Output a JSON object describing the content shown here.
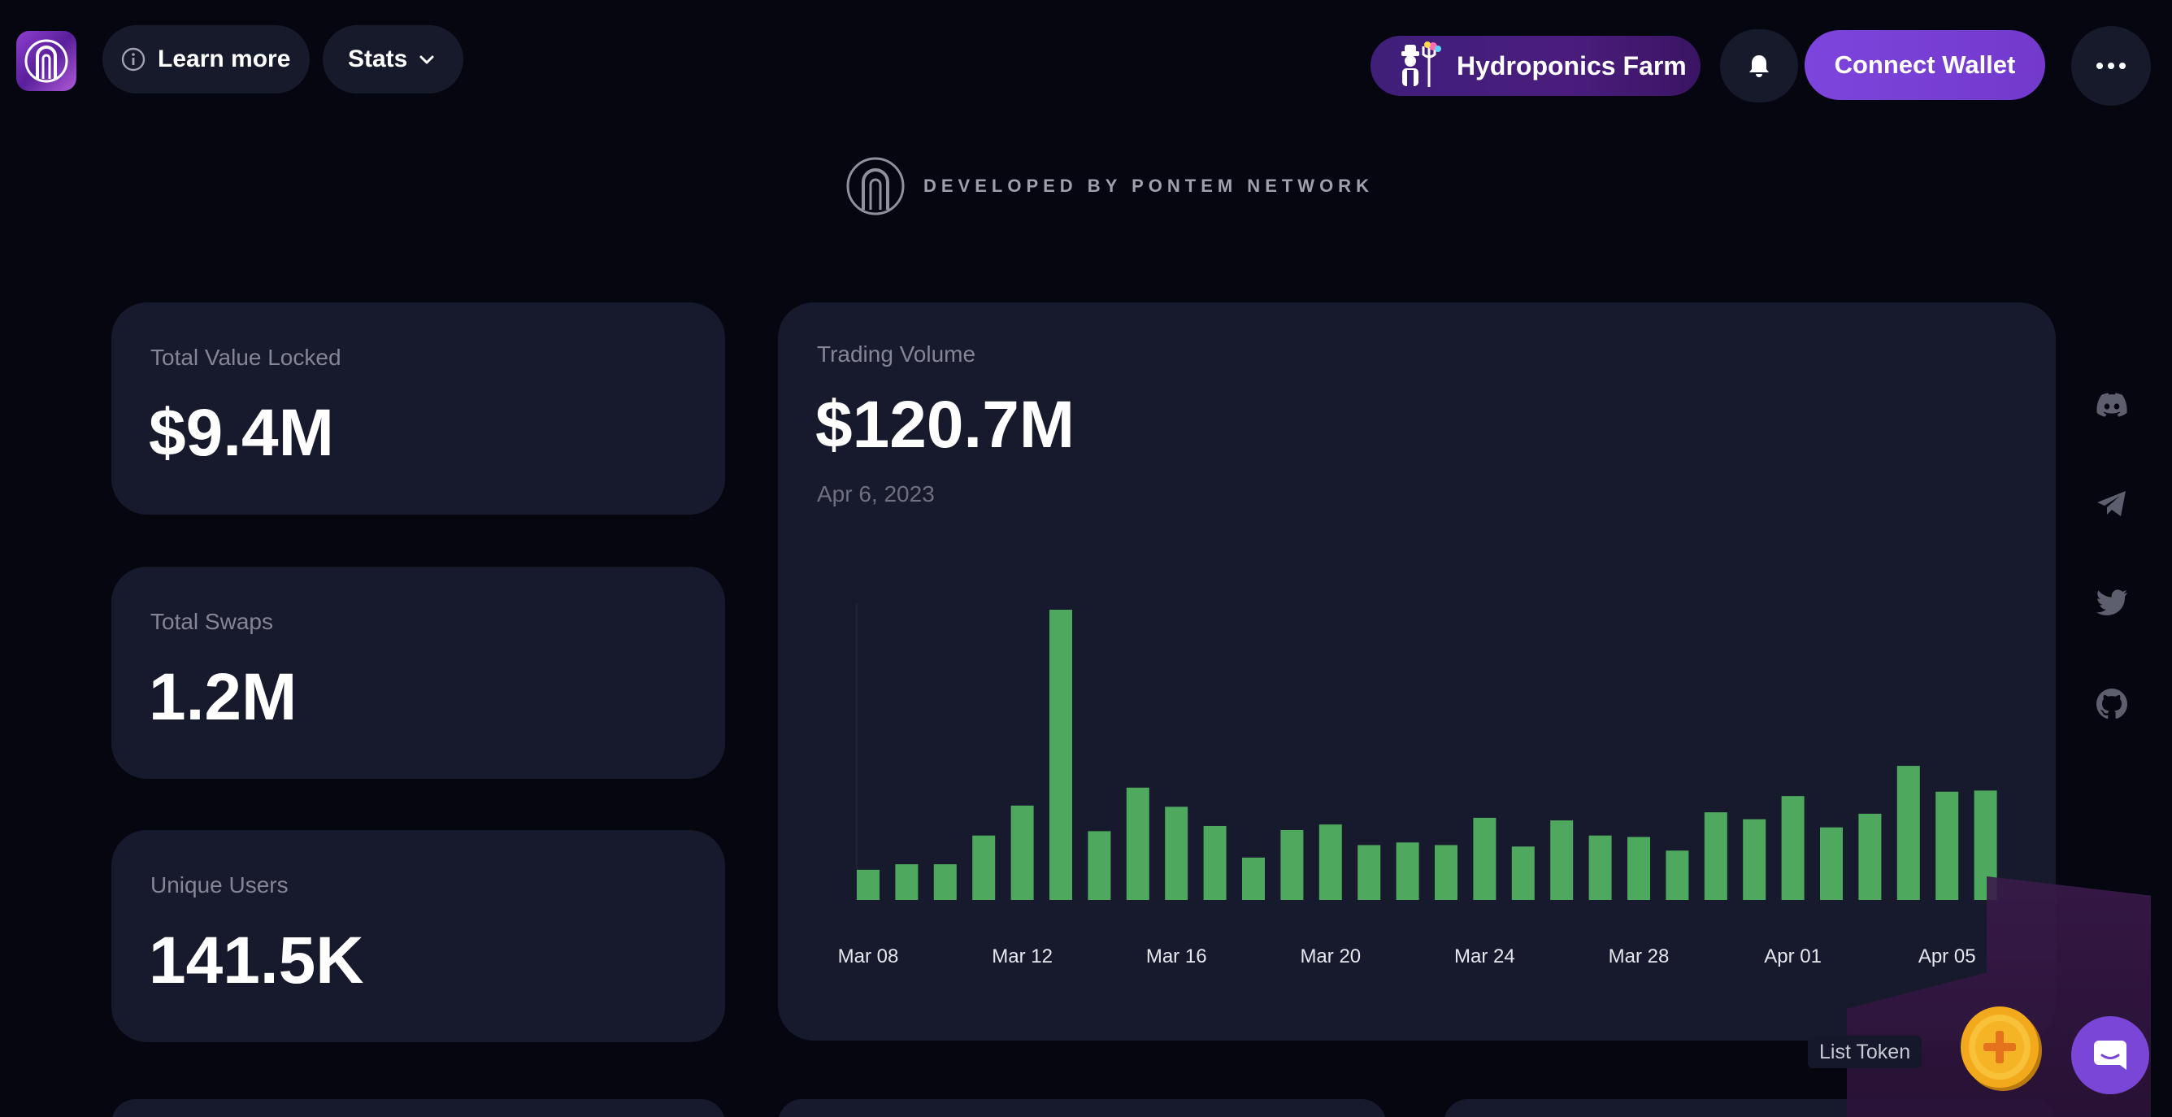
{
  "header": {
    "learn_more_label": "Learn more",
    "stats_label": "Stats",
    "farm_label": "Hydroponics Farm",
    "connect_label": "Connect Wallet"
  },
  "branding": {
    "developed_by": "DEVELOPED BY PONTEM NETWORK"
  },
  "stats": {
    "tvl": {
      "label": "Total Value Locked",
      "value": "$9.4M"
    },
    "swaps": {
      "label": "Total Swaps",
      "value": "1.2M"
    },
    "users": {
      "label": "Unique Users",
      "value": "141.5K"
    }
  },
  "volume": {
    "label": "Trading Volume",
    "value": "$120.7M",
    "date": "Apr 6, 2023"
  },
  "chart_data": {
    "type": "bar",
    "title": "Trading Volume",
    "xlabel": "",
    "ylabel": "",
    "grid": false,
    "legend": "none",
    "bar_color": "#4ea85d",
    "categories": [
      "Mar 08",
      "Mar 09",
      "Mar 10",
      "Mar 11",
      "Mar 12",
      "Mar 13",
      "Mar 14",
      "Mar 15",
      "Mar 16",
      "Mar 17",
      "Mar 18",
      "Mar 19",
      "Mar 20",
      "Mar 21",
      "Mar 22",
      "Mar 23",
      "Mar 24",
      "Mar 25",
      "Mar 26",
      "Mar 27",
      "Mar 28",
      "Mar 29",
      "Mar 30",
      "Mar 31",
      "Apr 01",
      "Apr 02",
      "Apr 03",
      "Apr 04",
      "Apr 05",
      "Apr 06"
    ],
    "values": [
      10.4,
      12.3,
      12.3,
      22.2,
      32.5,
      100,
      23.7,
      38.7,
      32.1,
      25.5,
      14.6,
      24.1,
      26.0,
      18.9,
      19.8,
      18.9,
      28.3,
      18.4,
      27.4,
      22.2,
      21.7,
      17.0,
      30.2,
      27.8,
      35.8,
      25.0,
      29.7,
      46.2,
      37.3,
      37.7
    ],
    "x_tick_labels": [
      "Mar 08",
      "Mar 12",
      "Mar 16",
      "Mar 20",
      "Mar 24",
      "Mar 28",
      "Apr 01",
      "Apr 05"
    ],
    "x_tick_indices": [
      0,
      4,
      8,
      12,
      16,
      20,
      24,
      28
    ]
  },
  "sidebar_social": {
    "items": [
      {
        "icon": "discord-icon"
      },
      {
        "icon": "telegram-icon"
      },
      {
        "icon": "twitter-icon"
      },
      {
        "icon": "github-icon"
      }
    ]
  },
  "floating": {
    "list_token_label": "List Token"
  },
  "colors": {
    "background": "#05060f",
    "card": "#171a2c",
    "accent": "#7a46d8",
    "bar": "#4ea85d"
  }
}
